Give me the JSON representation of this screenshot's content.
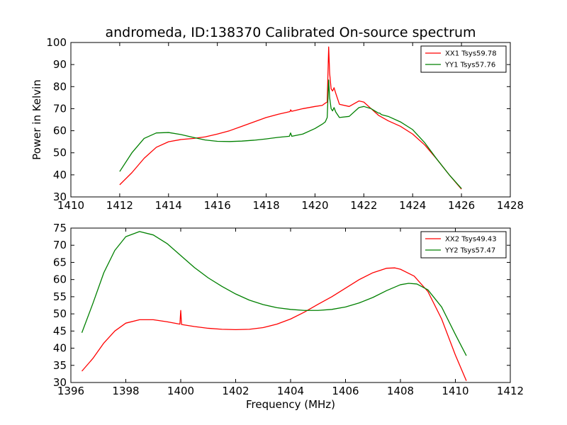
{
  "figure": {
    "title": "andromeda, ID:138370 Calibrated On-source spectrum"
  },
  "chart_data": [
    {
      "type": "line",
      "title": "andromeda, ID:138370 Calibrated On-source spectrum",
      "xlabel": "",
      "ylabel": "Power in Kelvin",
      "xlim": [
        1410,
        1428
      ],
      "ylim": [
        30,
        100
      ],
      "xticks": [
        "1410",
        "1412",
        "1414",
        "1416",
        "1418",
        "1420",
        "1422",
        "1424",
        "1426",
        "1428"
      ],
      "yticks": [
        "30",
        "40",
        "50",
        "60",
        "70",
        "80",
        "90",
        "100"
      ],
      "legend_position": "top-right",
      "grid": false,
      "series": [
        {
          "name": "XX1 Tsys59.78",
          "color": "#ff0000",
          "points": [
            [
              1412.0,
              35.5
            ],
            [
              1412.5,
              41
            ],
            [
              1413.0,
              47.5
            ],
            [
              1413.5,
              52.5
            ],
            [
              1414.0,
              55
            ],
            [
              1414.5,
              56
            ],
            [
              1415.0,
              56.5
            ],
            [
              1415.5,
              57.2
            ],
            [
              1416.0,
              58.5
            ],
            [
              1416.5,
              60
            ],
            [
              1417.0,
              62
            ],
            [
              1417.5,
              64
            ],
            [
              1418.0,
              66
            ],
            [
              1418.5,
              67.5
            ],
            [
              1418.98,
              68.7
            ],
            [
              1419.0,
              69.5
            ],
            [
              1419.05,
              68.8
            ],
            [
              1419.5,
              70
            ],
            [
              1420.0,
              71
            ],
            [
              1420.3,
              71.5
            ],
            [
              1420.42,
              72.5
            ],
            [
              1420.5,
              73
            ],
            [
              1420.56,
              98
            ],
            [
              1420.6,
              86
            ],
            [
              1420.66,
              79
            ],
            [
              1420.72,
              78
            ],
            [
              1420.78,
              79.5
            ],
            [
              1420.85,
              77
            ],
            [
              1421.0,
              72
            ],
            [
              1421.4,
              71
            ],
            [
              1421.8,
              73.5
            ],
            [
              1422.0,
              73
            ],
            [
              1422.3,
              70
            ],
            [
              1422.6,
              67
            ],
            [
              1423.0,
              64.5
            ],
            [
              1423.5,
              62
            ],
            [
              1424.0,
              58.5
            ],
            [
              1424.5,
              53.5
            ],
            [
              1425.0,
              47
            ],
            [
              1425.5,
              40
            ],
            [
              1426.0,
              33.5
            ]
          ]
        },
        {
          "name": "YY1 Tsys57.76",
          "color": "#008000",
          "points": [
            [
              1412.0,
              41.5
            ],
            [
              1412.5,
              50
            ],
            [
              1413.0,
              56.5
            ],
            [
              1413.5,
              59
            ],
            [
              1414.0,
              59.2
            ],
            [
              1414.5,
              58.3
            ],
            [
              1415.0,
              57
            ],
            [
              1415.5,
              55.8
            ],
            [
              1416.0,
              55.2
            ],
            [
              1416.5,
              55.1
            ],
            [
              1417.0,
              55.3
            ],
            [
              1417.5,
              55.7
            ],
            [
              1418.0,
              56.3
            ],
            [
              1418.5,
              57
            ],
            [
              1418.95,
              57.5
            ],
            [
              1419.0,
              59
            ],
            [
              1419.05,
              57.5
            ],
            [
              1419.5,
              58.5
            ],
            [
              1420.0,
              61
            ],
            [
              1420.3,
              63
            ],
            [
              1420.42,
              64
            ],
            [
              1420.5,
              66
            ],
            [
              1420.56,
              83
            ],
            [
              1420.6,
              75
            ],
            [
              1420.66,
              70
            ],
            [
              1420.72,
              69
            ],
            [
              1420.78,
              70.5
            ],
            [
              1420.85,
              68.5
            ],
            [
              1421.0,
              66
            ],
            [
              1421.4,
              66.5
            ],
            [
              1421.8,
              70.5
            ],
            [
              1422.0,
              71
            ],
            [
              1422.3,
              70
            ],
            [
              1422.6,
              68
            ],
            [
              1422.65,
              68
            ],
            [
              1422.7,
              67.5
            ],
            [
              1422.75,
              67.2
            ],
            [
              1423.0,
              66.5
            ],
            [
              1423.5,
              64
            ],
            [
              1424.0,
              60.5
            ],
            [
              1424.5,
              54.5
            ],
            [
              1425.0,
              47
            ],
            [
              1425.5,
              40
            ],
            [
              1426.0,
              33.8
            ]
          ]
        }
      ]
    },
    {
      "type": "line",
      "title": "",
      "xlabel": "Frequency (MHz)",
      "ylabel": "",
      "xlim": [
        1396,
        1412
      ],
      "ylim": [
        30,
        75
      ],
      "xticks": [
        "1396",
        "1398",
        "1400",
        "1402",
        "1404",
        "1406",
        "1408",
        "1410",
        "1412"
      ],
      "yticks": [
        "30",
        "35",
        "40",
        "45",
        "50",
        "55",
        "60",
        "65",
        "70",
        "75"
      ],
      "legend_position": "top-right",
      "grid": false,
      "series": [
        {
          "name": "XX2 Tsys49.43",
          "color": "#ff0000",
          "points": [
            [
              1396.4,
              33.3
            ],
            [
              1396.8,
              37
            ],
            [
              1397.2,
              41.5
            ],
            [
              1397.6,
              45
            ],
            [
              1398.0,
              47.3
            ],
            [
              1398.5,
              48.3
            ],
            [
              1399.0,
              48.3
            ],
            [
              1399.5,
              47.7
            ],
            [
              1399.97,
              47
            ],
            [
              1400.0,
              51
            ],
            [
              1400.03,
              46.9
            ],
            [
              1400.5,
              46.3
            ],
            [
              1401.0,
              45.8
            ],
            [
              1401.5,
              45.5
            ],
            [
              1402.0,
              45.4
            ],
            [
              1402.5,
              45.5
            ],
            [
              1403.0,
              46
            ],
            [
              1403.5,
              47
            ],
            [
              1404.0,
              48.5
            ],
            [
              1404.5,
              50.5
            ],
            [
              1405.0,
              52.8
            ],
            [
              1405.5,
              55
            ],
            [
              1406.0,
              57.5
            ],
            [
              1406.5,
              60
            ],
            [
              1407.0,
              62
            ],
            [
              1407.5,
              63.3
            ],
            [
              1407.8,
              63.4
            ],
            [
              1408.0,
              63
            ],
            [
              1408.5,
              61
            ],
            [
              1409.0,
              56.5
            ],
            [
              1409.5,
              48.5
            ],
            [
              1410.0,
              38
            ],
            [
              1410.4,
              30.5
            ]
          ]
        },
        {
          "name": "YY2 Tsys57.47",
          "color": "#008000",
          "points": [
            [
              1396.4,
              44.5
            ],
            [
              1396.8,
              53
            ],
            [
              1397.2,
              62
            ],
            [
              1397.6,
              68.5
            ],
            [
              1398.0,
              72.5
            ],
            [
              1398.5,
              74
            ],
            [
              1399.0,
              73
            ],
            [
              1399.5,
              70.5
            ],
            [
              1400.0,
              67
            ],
            [
              1400.5,
              63.5
            ],
            [
              1401.0,
              60.5
            ],
            [
              1401.5,
              58
            ],
            [
              1402.0,
              55.8
            ],
            [
              1402.5,
              54
            ],
            [
              1403.0,
              52.7
            ],
            [
              1403.5,
              51.8
            ],
            [
              1404.0,
              51.3
            ],
            [
              1404.5,
              51
            ],
            [
              1405.0,
              51
            ],
            [
              1405.5,
              51.3
            ],
            [
              1406.0,
              52
            ],
            [
              1406.5,
              53.2
            ],
            [
              1407.0,
              54.8
            ],
            [
              1407.5,
              56.8
            ],
            [
              1408.0,
              58.5
            ],
            [
              1408.3,
              58.9
            ],
            [
              1408.6,
              58.7
            ],
            [
              1409.0,
              57
            ],
            [
              1409.5,
              52
            ],
            [
              1410.0,
              44
            ],
            [
              1410.4,
              37.8
            ]
          ]
        }
      ]
    }
  ]
}
